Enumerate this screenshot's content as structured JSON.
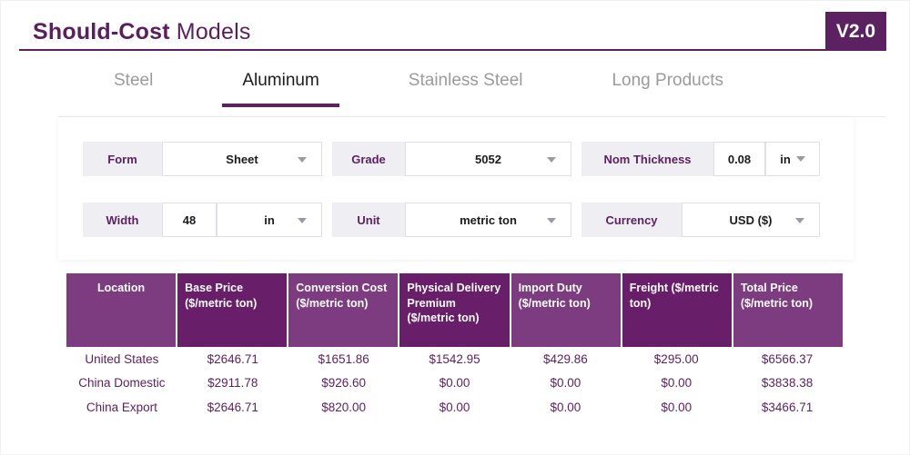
{
  "header": {
    "title_bold": "Should-Cost",
    "title_regular": "Models",
    "version_badge": "V2.0"
  },
  "tabs": [
    {
      "label": "Steel",
      "active": false
    },
    {
      "label": "Aluminum",
      "active": true
    },
    {
      "label": "Stainless Steel",
      "active": false
    },
    {
      "label": "Long Products",
      "active": false
    }
  ],
  "filters": {
    "rows": [
      [
        {
          "label": "Form",
          "type": "select",
          "value": "Sheet"
        },
        {
          "label": "Grade",
          "type": "select",
          "value": "5052"
        },
        {
          "label": "Nom Thickness",
          "type": "input-with-unit",
          "value": "0.08",
          "unit": "in"
        }
      ],
      [
        {
          "label": "Width",
          "type": "input-with-unit-select",
          "value": "48",
          "unit": "in"
        },
        {
          "label": "Unit",
          "type": "select",
          "value": "metric ton"
        },
        {
          "label": "Currency",
          "type": "select",
          "value": "USD ($)"
        }
      ]
    ]
  },
  "table": {
    "columns": [
      "Location",
      "Base Price ($/metric ton)",
      "Conversion Cost ($/metric ton)",
      "Physical Delivery Premium ($/metric ton)",
      "Import Duty ($/metric ton)",
      "Freight ($/metric ton)",
      "Total Price ($/metric ton)"
    ],
    "rows": [
      [
        "United States",
        "$2646.71",
        "$1651.86",
        "$1542.95",
        "$429.86",
        "$295.00",
        "$6566.37"
      ],
      [
        "China Domestic",
        "$2911.78",
        "$926.60",
        "$0.00",
        "$0.00",
        "$0.00",
        "$3838.38"
      ],
      [
        "China Export",
        "$2646.71",
        "$820.00",
        "$0.00",
        "$0.00",
        "$0.00",
        "$3466.71"
      ]
    ]
  },
  "colors": {
    "accent_purple": "#5b2161",
    "title_purple": "#5b1f5e",
    "table_header_light": "#7e3c80",
    "table_header_dark": "#681e68",
    "filter_label_bg": "#efeef3",
    "inactive_tab_text": "#9b9b9b"
  }
}
